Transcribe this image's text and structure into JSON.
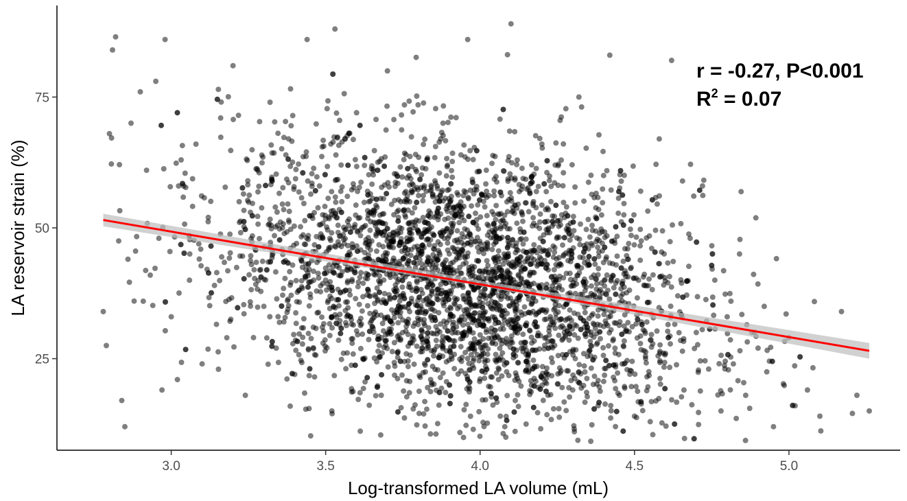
{
  "chart_data": {
    "type": "scatter",
    "title": "",
    "xlabel": "Log-transformed LA volume (mL)",
    "ylabel": "LA reservoir strain (%)",
    "xlim": [
      2.63,
      5.36
    ],
    "ylim": [
      7.5,
      92.5
    ],
    "x_ticks": [
      3.0,
      3.5,
      4.0,
      4.5,
      5.0
    ],
    "x_tick_labels": [
      "3.0",
      "3.5",
      "4.0",
      "4.5",
      "5.0"
    ],
    "y_ticks": [
      25,
      50,
      75
    ],
    "y_tick_labels": [
      "25",
      "50",
      "75"
    ],
    "grid": false,
    "legend": "none",
    "annotations": {
      "correlation": "r = -0.27, P<0.001",
      "r2_prefix": "R",
      "r2_superscript": "2",
      "r2_suffix": " = 0.07"
    },
    "series": [
      {
        "kind": "points",
        "color": "#000000",
        "opacity": 0.5,
        "points": [
          [
            2.78,
            34
          ],
          [
            2.79,
            27.5
          ],
          [
            2.8,
            68
          ],
          [
            2.81,
            84
          ],
          [
            2.82,
            86.5
          ],
          [
            2.83,
            47.5
          ],
          [
            2.84,
            17
          ],
          [
            2.85,
            12
          ],
          [
            2.86,
            44
          ],
          [
            2.87,
            70
          ],
          [
            2.88,
            36
          ],
          [
            2.9,
            76
          ],
          [
            2.92,
            61
          ],
          [
            2.95,
            78
          ],
          [
            2.96,
            48
          ],
          [
            2.97,
            19
          ],
          [
            2.98,
            86
          ],
          [
            3.0,
            33
          ],
          [
            3.02,
            21
          ],
          [
            3.04,
            58
          ],
          [
            3.06,
            45
          ],
          [
            3.08,
            66
          ],
          [
            3.1,
            24
          ],
          [
            3.12,
            52
          ],
          [
            3.14,
            39
          ],
          [
            3.16,
            71
          ],
          [
            3.18,
            29
          ],
          [
            3.2,
            81
          ],
          [
            3.22,
            55
          ],
          [
            3.24,
            18
          ],
          [
            3.26,
            43
          ],
          [
            3.28,
            61
          ],
          [
            3.3,
            35
          ],
          [
            3.32,
            74
          ],
          [
            3.34,
            27
          ],
          [
            3.36,
            50
          ],
          [
            3.38,
            67
          ],
          [
            3.4,
            22
          ],
          [
            3.42,
            44
          ],
          [
            3.44,
            86
          ],
          [
            3.46,
            31
          ],
          [
            3.48,
            58
          ],
          [
            3.5,
            40
          ],
          [
            3.52,
            15
          ],
          [
            3.53,
            88
          ],
          [
            3.55,
            62
          ],
          [
            3.56,
            47
          ],
          [
            3.58,
            33
          ],
          [
            3.6,
            72
          ],
          [
            3.62,
            25
          ],
          [
            3.64,
            55
          ],
          [
            3.66,
            41
          ],
          [
            3.68,
            18
          ],
          [
            3.7,
            80
          ],
          [
            3.72,
            49
          ],
          [
            3.74,
            36
          ],
          [
            3.76,
            64
          ],
          [
            3.78,
            28
          ],
          [
            3.8,
            45
          ],
          [
            3.82,
            58
          ],
          [
            3.84,
            21
          ],
          [
            3.86,
            37
          ],
          [
            3.88,
            70
          ],
          [
            3.9,
            42
          ],
          [
            3.92,
            30
          ],
          [
            3.94,
            52
          ],
          [
            3.96,
            86
          ],
          [
            3.98,
            25
          ],
          [
            4.0,
            39
          ],
          [
            4.02,
            61
          ],
          [
            4.04,
            33
          ],
          [
            4.06,
            48
          ],
          [
            4.08,
            12
          ],
          [
            4.1,
            89
          ],
          [
            4.12,
            44
          ],
          [
            4.14,
            27
          ],
          [
            4.16,
            57
          ],
          [
            4.18,
            36
          ],
          [
            4.2,
            66
          ],
          [
            4.22,
            22
          ],
          [
            4.24,
            42
          ],
          [
            4.26,
            31
          ],
          [
            4.28,
            54
          ],
          [
            4.3,
            19
          ],
          [
            4.32,
            75
          ],
          [
            4.34,
            38
          ],
          [
            4.36,
            47
          ],
          [
            4.38,
            28
          ],
          [
            4.4,
            60
          ],
          [
            4.42,
            83
          ],
          [
            4.44,
            35
          ],
          [
            4.46,
            24
          ],
          [
            4.48,
            44
          ],
          [
            4.5,
            14
          ],
          [
            4.52,
            57
          ],
          [
            4.54,
            32
          ],
          [
            4.56,
            41
          ],
          [
            4.58,
            67
          ],
          [
            4.6,
            26
          ],
          [
            4.62,
            82
          ],
          [
            4.64,
            37
          ],
          [
            4.66,
            19
          ],
          [
            4.68,
            48
          ],
          [
            4.7,
            30
          ],
          [
            4.72,
            58
          ],
          [
            4.74,
            23
          ],
          [
            4.76,
            40
          ],
          [
            4.78,
            15
          ],
          [
            4.8,
            33
          ],
          [
            4.82,
            24
          ],
          [
            4.84,
            45
          ],
          [
            4.86,
            18
          ],
          [
            4.88,
            30
          ],
          [
            4.9,
            27
          ],
          [
            4.92,
            35
          ],
          [
            4.95,
            12
          ],
          [
            5.0,
            29
          ],
          [
            5.02,
            16
          ],
          [
            5.06,
            19
          ],
          [
            5.1,
            14
          ],
          [
            5.17,
            34
          ],
          [
            5.22,
            18
          ],
          [
            5.26,
            15
          ]
        ]
      },
      {
        "kind": "regression-line",
        "color": "#ff0000",
        "band_color": "#bdbdbd",
        "points": [
          [
            2.78,
            51.5
          ],
          [
            5.26,
            26.5
          ]
        ],
        "ci_lower": [
          [
            2.78,
            50.3
          ],
          [
            4.0,
            38.9
          ],
          [
            5.26,
            25.0
          ]
        ],
        "ci_upper": [
          [
            2.78,
            52.7
          ],
          [
            4.0,
            39.9
          ],
          [
            5.26,
            28.0
          ]
        ]
      }
    ]
  }
}
